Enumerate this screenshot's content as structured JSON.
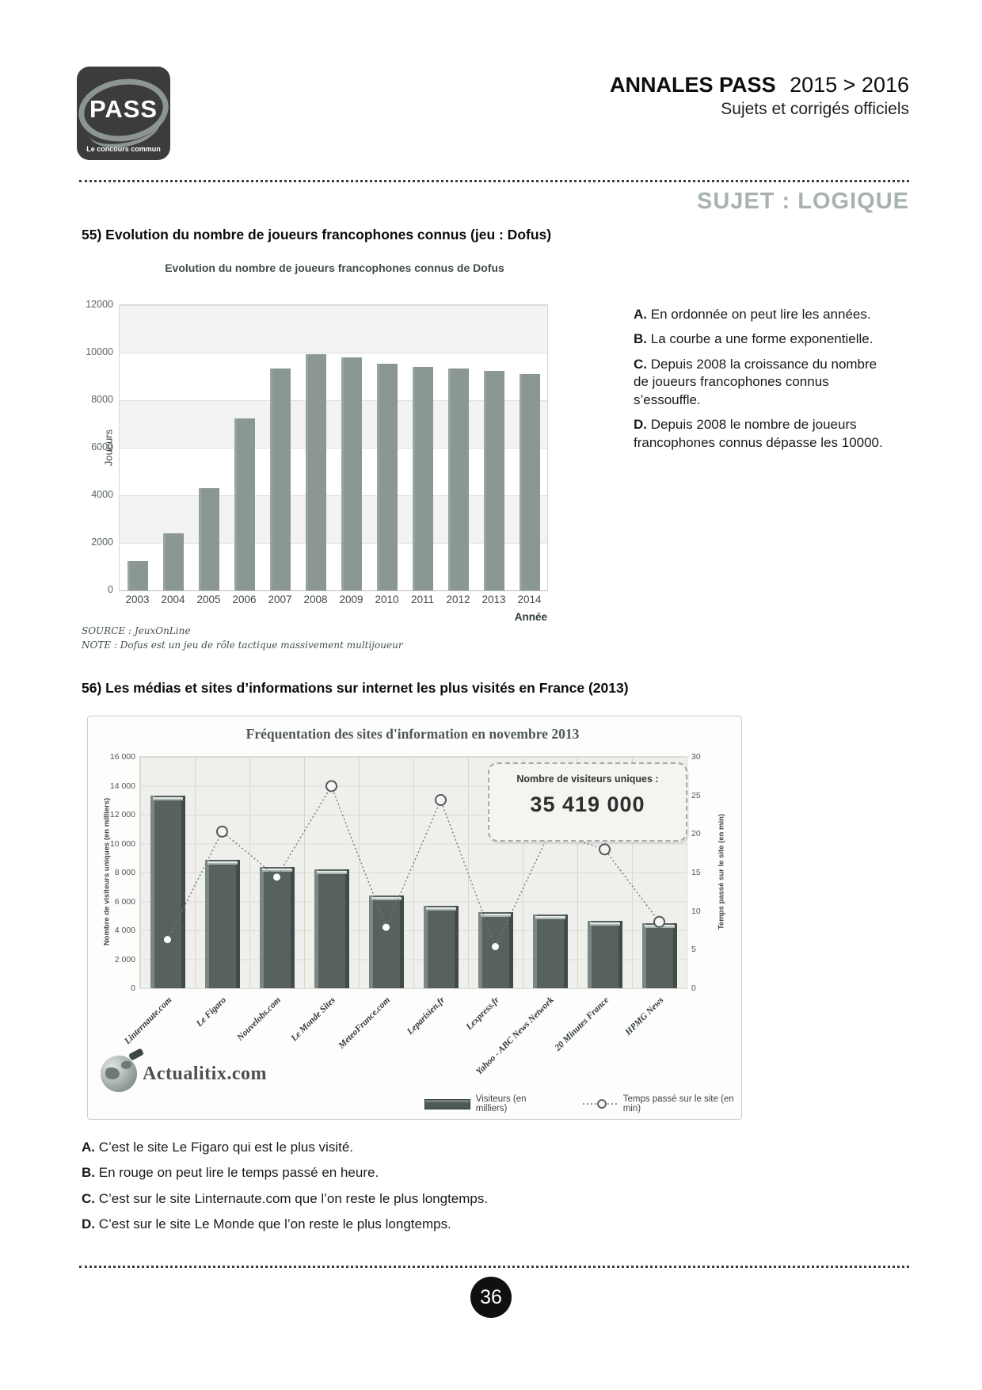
{
  "header": {
    "logo_text": "PASS",
    "logo_tagline": "Le concours commun",
    "title_bold": "ANNALES PASS",
    "title_years": "2015 > 2016",
    "subtitle": "Sujets et corrigés officiels",
    "section_title": "SUJET : LOGIQUE"
  },
  "q55": {
    "heading": "55) Evolution du nombre de joueurs francophones connus (jeu : Dofus)",
    "source": "SOURCE : JeuxOnLine",
    "note": "NOTE : Dofus est un jeu de rôle tactique massivement multijoueur",
    "options": [
      {
        "label": "A.",
        "text": "En ordonnée on peut lire les années."
      },
      {
        "label": "B.",
        "text": "La courbe a une forme exponentielle."
      },
      {
        "label": "C.",
        "text": "Depuis 2008 la croissance du nombre de joueurs francophones connus s’essouffle."
      },
      {
        "label": "D.",
        "text": "Depuis 2008 le nombre de joueurs francophones connus dépasse les 10000."
      }
    ]
  },
  "q56": {
    "heading": "56) Les médias et sites d’informations sur internet les plus visités en France (2013)",
    "options": [
      {
        "label": "A.",
        "text": "C’est le site Le Figaro qui est le plus visité."
      },
      {
        "label": "B.",
        "text": "En rouge on peut lire le temps passé en heure."
      },
      {
        "label": "C.",
        "text": "C’est sur le site Linternaute.com que l’on reste le plus longtemps."
      },
      {
        "label": "D.",
        "text": "C’est sur le site Le Monde que l’on reste le plus longtemps."
      }
    ]
  },
  "footer": {
    "page_number": "36"
  },
  "chart_data": [
    {
      "type": "bar",
      "title": "Evolution du nombre de joueurs francophones connus de Dofus",
      "categories": [
        "2003",
        "2004",
        "2005",
        "2006",
        "2007",
        "2008",
        "2009",
        "2010",
        "2011",
        "2012",
        "2013",
        "2014"
      ],
      "values": [
        1250,
        2400,
        4300,
        7250,
        9350,
        9950,
        9800,
        9550,
        9400,
        9350,
        9250,
        9100
      ],
      "xlabel": "Année",
      "ylabel": "Joueurs",
      "ylim": [
        0,
        12000
      ],
      "yticks": [
        0,
        2000,
        4000,
        6000,
        8000,
        10000,
        12000
      ],
      "bar_color": "#8b9795",
      "source": "SOURCE : JeuxOnLine",
      "legend_position": "none",
      "grid": true
    },
    {
      "type": "bar+line",
      "title": "Fréquentation des sites d'information en novembre 2013",
      "categories": [
        "Linternaute.com",
        "Le Figaro",
        "Nouvelobs.com",
        "Le Monde Sites",
        "MeteoFrance.com",
        "Leparisien.fr",
        "Lexpress.fr",
        "Yahoo - ABC News Network",
        "20 Minutes France",
        "HPMG News"
      ],
      "series": [
        {
          "name": "Visiteurs (en milliers)",
          "type": "bar",
          "axis": "left",
          "values": [
            13300,
            8900,
            8400,
            8200,
            6400,
            5700,
            5250,
            5100,
            4650,
            4500
          ]
        },
        {
          "name": "Temps passé sur le site (en min)",
          "type": "line",
          "axis": "right",
          "values": [
            6.3,
            20.3,
            14.4,
            26.2,
            7.9,
            24.4,
            5.4,
            20.3,
            18.0,
            8.6
          ]
        }
      ],
      "ylabel_left": "Nombre de visiteurs uniques  (en milliers)",
      "ylabel_right": "Temps passé sur le site (en min)",
      "ylim_left": [
        0,
        16000
      ],
      "ylim_right": [
        0,
        30
      ],
      "yticks_left": [
        "0",
        "2 000",
        "4 000",
        "6 000",
        "8 000",
        "10 000",
        "12 000",
        "14 000",
        "16 000"
      ],
      "yticks_right": [
        "0",
        "5",
        "10",
        "15",
        "20",
        "25",
        "30"
      ],
      "callout_label": "Nombre de visiteurs uniques :",
      "callout_value": "35 419 000",
      "watermark": "Actualitix.com",
      "bar_color": "#55605f",
      "line_color": "#6f7a79",
      "grid": true,
      "legend_position": "bottom"
    }
  ]
}
